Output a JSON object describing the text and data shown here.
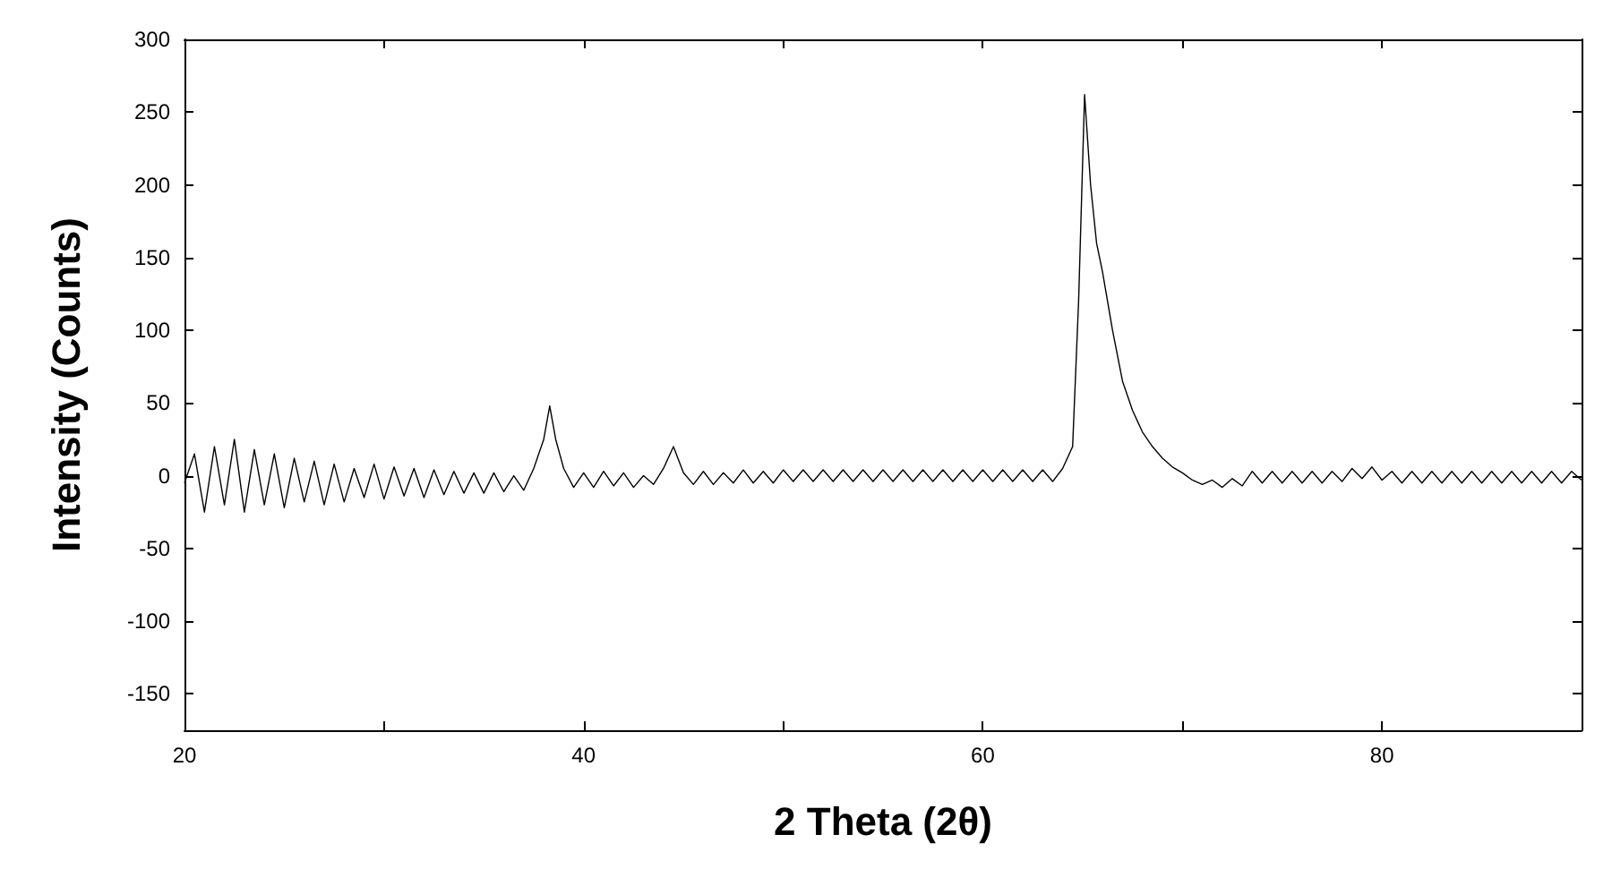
{
  "chart_data": {
    "type": "line",
    "xlabel": "2 Theta (2θ)",
    "ylabel": "Intensity (Counts)",
    "xlim": [
      20,
      90
    ],
    "ylim": [
      -175,
      300
    ],
    "xticks": [
      20,
      {
        "value": 30,
        "label": null
      },
      40,
      {
        "value": 50,
        "label": null
      },
      60,
      {
        "value": 70,
        "label": null
      },
      80,
      {
        "value": 90,
        "label": null
      }
    ],
    "yticks": [
      -150,
      -100,
      -50,
      0,
      50,
      100,
      150,
      200,
      250,
      300
    ],
    "grid": false,
    "marker": "none",
    "line_style": "solid",
    "series": [
      {
        "color": "#000000",
        "x": [
          20,
          20.5,
          21,
          21.5,
          22,
          22.5,
          23,
          23.5,
          24,
          24.5,
          25,
          25.5,
          26,
          26.5,
          27,
          27.5,
          28,
          28.5,
          29,
          29.5,
          30,
          30.5,
          31,
          31.5,
          32,
          32.5,
          33,
          33.5,
          34,
          34.5,
          35,
          35.5,
          36,
          36.5,
          37,
          37.5,
          38,
          38.3,
          38.6,
          39,
          39.5,
          40,
          40.5,
          41,
          41.5,
          42,
          42.5,
          43,
          43.5,
          44,
          44.5,
          45,
          45.5,
          46,
          46.5,
          47,
          47.5,
          48,
          48.5,
          49,
          49.5,
          50,
          50.5,
          51,
          51.5,
          52,
          52.5,
          53,
          53.5,
          54,
          54.5,
          55,
          55.5,
          56,
          56.5,
          57,
          57.5,
          58,
          58.5,
          59,
          59.5,
          60,
          60.5,
          61,
          61.5,
          62,
          62.5,
          63,
          63.5,
          64,
          64.5,
          64.8,
          65.1,
          65.4,
          65.7,
          66,
          66.5,
          67,
          67.5,
          68,
          68.5,
          69,
          69.5,
          70,
          70.5,
          71,
          71.5,
          72,
          72.5,
          73,
          73.5,
          74,
          74.5,
          75,
          75.5,
          76,
          76.5,
          77,
          77.5,
          78,
          78.5,
          79,
          79.5,
          80,
          80.5,
          81,
          81.5,
          82,
          82.5,
          83,
          83.5,
          84,
          84.5,
          85,
          85.5,
          86,
          86.5,
          87,
          87.5,
          88,
          88.5,
          89,
          89.5,
          90
        ],
        "values": [
          -5,
          15,
          -25,
          20,
          -20,
          25,
          -25,
          18,
          -20,
          15,
          -22,
          12,
          -18,
          10,
          -20,
          8,
          -18,
          5,
          -15,
          8,
          -16,
          6,
          -14,
          5,
          -15,
          4,
          -13,
          3,
          -12,
          2,
          -12,
          2,
          -11,
          0,
          -10,
          5,
          25,
          48,
          25,
          5,
          -8,
          2,
          -8,
          3,
          -7,
          2,
          -8,
          0,
          -6,
          5,
          20,
          2,
          -6,
          3,
          -6,
          2,
          -5,
          4,
          -5,
          3,
          -5,
          4,
          -4,
          4,
          -4,
          4,
          -4,
          4,
          -4,
          4,
          -4,
          4,
          -4,
          4,
          -4,
          4,
          -4,
          4,
          -4,
          4,
          -4,
          4,
          -4,
          4,
          -4,
          4,
          -4,
          4,
          -4,
          5,
          20,
          120,
          262,
          200,
          160,
          140,
          100,
          65,
          45,
          30,
          20,
          12,
          6,
          2,
          -3,
          -6,
          -3,
          -8,
          -2,
          -7,
          3,
          -5,
          3,
          -5,
          3,
          -5,
          3,
          -5,
          3,
          -4,
          5,
          -2,
          6,
          -3,
          3,
          -5,
          3,
          -5,
          3,
          -5,
          3,
          -5,
          3,
          -5,
          3,
          -5,
          3,
          -5,
          3,
          -5,
          3,
          -5,
          3,
          -3
        ]
      }
    ]
  }
}
